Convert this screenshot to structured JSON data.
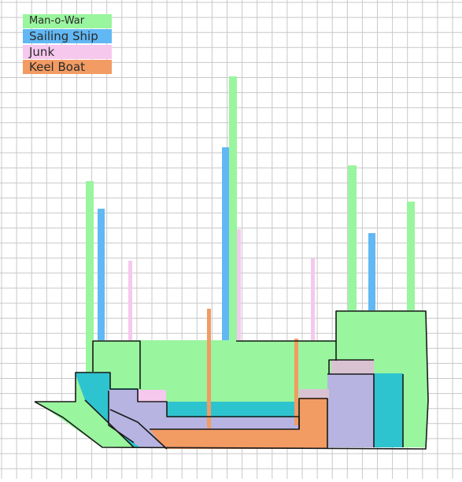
{
  "legend": [
    {
      "label": "Man-o-War",
      "color": "#99f59e"
    },
    {
      "label": "Sailing Ship",
      "color": "#62b8f4"
    },
    {
      "label": "Junk",
      "color": "#f6c8ee"
    },
    {
      "label": "Keel Boat",
      "color": "#f29b63"
    }
  ],
  "colors": {
    "grid": "#c8c8c8",
    "teal": "#2ec4cf",
    "junk_body": "#b7b4e1",
    "junk_deckhouse": "#d9c3d3",
    "outline": "#1a1a1a"
  }
}
